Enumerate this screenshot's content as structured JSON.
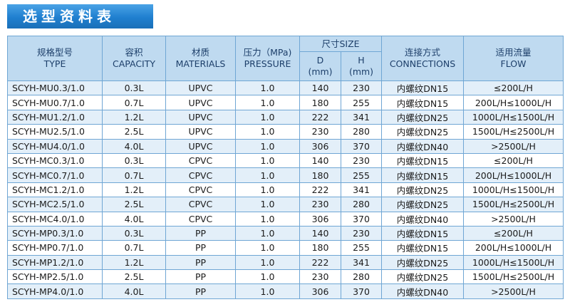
{
  "header": {
    "title": "选型资料表"
  },
  "table": {
    "columns": [
      {
        "zh": "规格型号",
        "en": "TYPE"
      },
      {
        "zh": "容积",
        "en": "CAPACITY"
      },
      {
        "zh": "材质",
        "en": "MATERIALS"
      },
      {
        "zh": "压力（MPa)",
        "en": "PRESSURE"
      },
      {
        "zh": "尺寸SIZE",
        "sub": [
          {
            "name": "D",
            "unit": "(mm)"
          },
          {
            "name": "H",
            "unit": "(mm)"
          }
        ]
      },
      {
        "zh": "连接方式",
        "en": "CONNECTIONS"
      },
      {
        "zh": "适用流量",
        "en": "FLOW"
      }
    ],
    "rows": [
      [
        "SCYH-MU0.3/1.0",
        "0.3L",
        "UPVC",
        "1.0",
        "140",
        "230",
        "内螺纹DN15",
        "≤200L/H"
      ],
      [
        "SCYH-MU0.7/1.0",
        "0.7L",
        "UPVC",
        "1.0",
        "180",
        "255",
        "内螺纹DN15",
        "200L/H≤1000L/H"
      ],
      [
        "SCYH-MU1.2/1.0",
        "1.2L",
        "UPVC",
        "1.0",
        "222",
        "341",
        "内螺纹DN25",
        "1000L/H≤1500L/H"
      ],
      [
        "SCYH-MU2.5/1.0",
        "2.5L",
        "UPVC",
        "1.0",
        "230",
        "280",
        "内螺纹DN25",
        "1500L/H≤2500L/H"
      ],
      [
        "SCYH-MU4.0/1.0",
        "4.0L",
        "UPVC",
        "1.0",
        "306",
        "370",
        "内螺纹DN40",
        ">2500L/H"
      ],
      [
        "SCYH-MC0.3/1.0",
        "0.3L",
        "CPVC",
        "1.0",
        "140",
        "230",
        "内螺纹DN15",
        "≤200L/H"
      ],
      [
        "SCYH-MC0.7/1.0",
        "0.7L",
        "CPVC",
        "1.0",
        "180",
        "255",
        "内螺纹DN15",
        "200L/H≤1000L/H"
      ],
      [
        "SCYH-MC1.2/1.0",
        "1.2L",
        "CPVC",
        "1.0",
        "222",
        "341",
        "内螺纹DN25",
        "1000L/H≤1500L/H"
      ],
      [
        "SCYH-MC2.5/1.0",
        "2.5L",
        "CPVC",
        "1.0",
        "230",
        "280",
        "内螺纹DN25",
        "1500L/H≤2500L/H"
      ],
      [
        "SCYH-MC4.0/1.0",
        "4.0L",
        "CPVC",
        "1.0",
        "306",
        "370",
        "内螺纹DN40",
        ">2500L/H"
      ],
      [
        "SCYH-MP0.3/1.0",
        "0.3L",
        "PP",
        "1.0",
        "140",
        "230",
        "内螺纹DN15",
        "≤200L/H"
      ],
      [
        "SCYH-MP0.7/1.0",
        "0.7L",
        "PP",
        "1.0",
        "180",
        "255",
        "内螺纹DN15",
        "200L/H≤1000L/H"
      ],
      [
        "SCYH-MP1.2/1.0",
        "1.2L",
        "PP",
        "1.0",
        "222",
        "341",
        "内螺纹DN25",
        "1000L/H≤1500L/H"
      ],
      [
        "SCYH-MP2.5/1.0",
        "2.5L",
        "PP",
        "1.0",
        "230",
        "280",
        "内螺纹DN25",
        "1500L/H≤2500L/H"
      ],
      [
        "SCYH-MP4.0/1.0",
        "4.0L",
        "PP",
        "1.0",
        "306",
        "370",
        "内螺纹DN40",
        ">2500L/H"
      ]
    ]
  }
}
